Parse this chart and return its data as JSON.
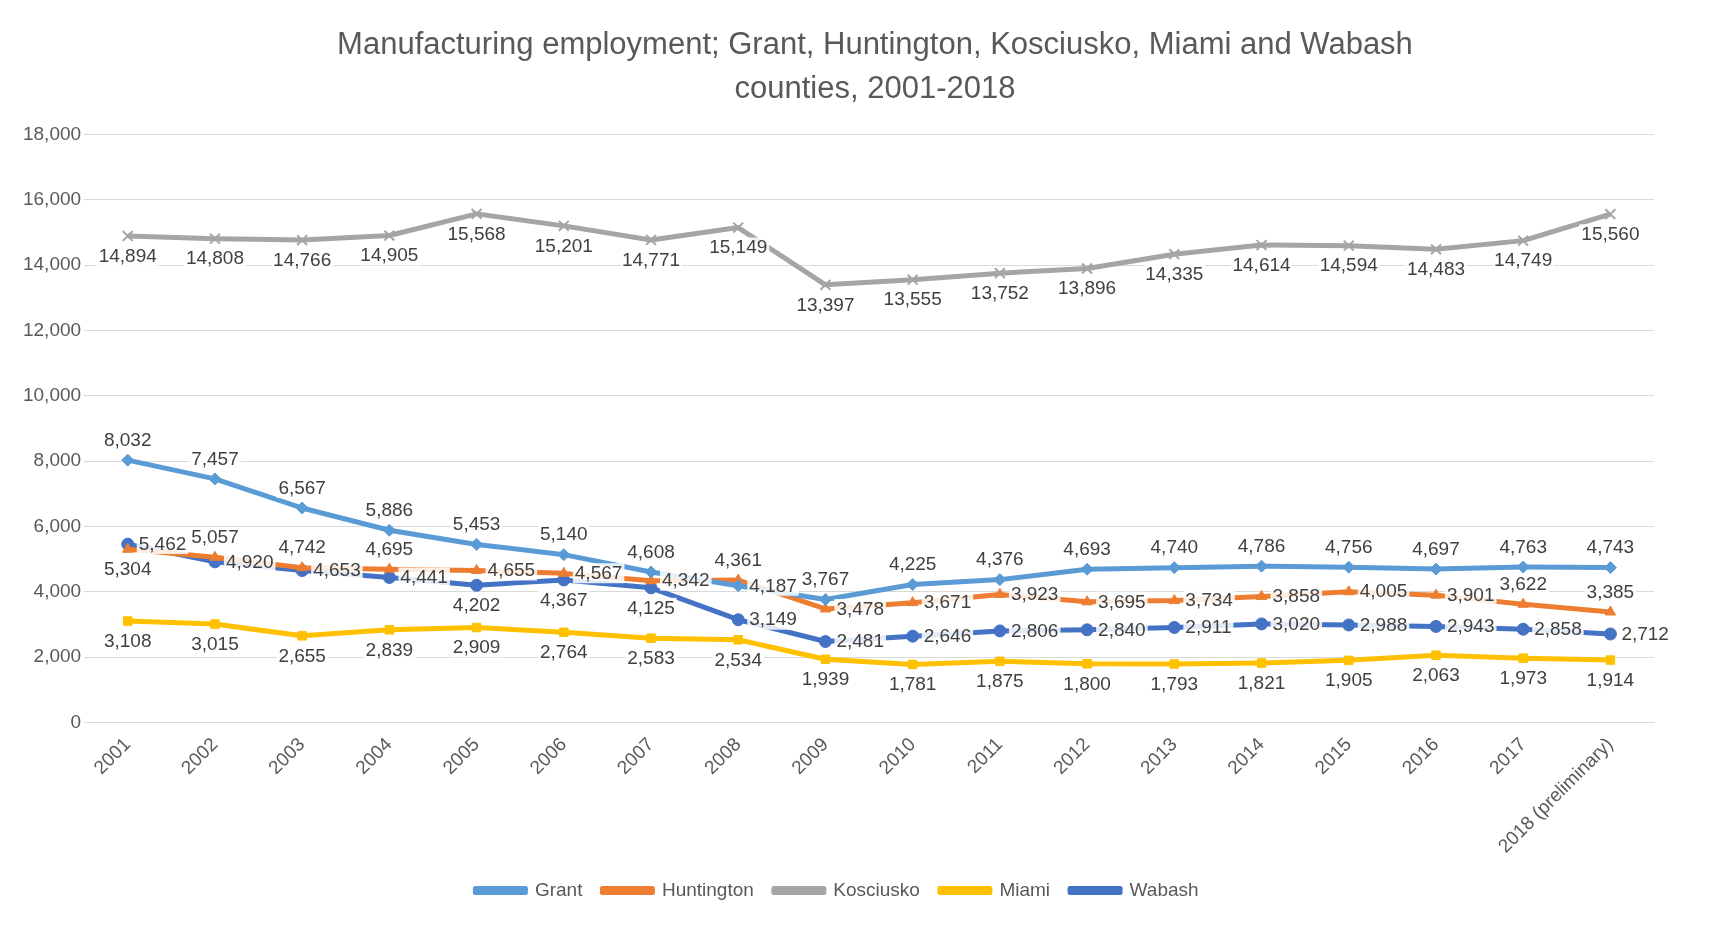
{
  "chart_data": {
    "type": "line",
    "title": "Manufacturing employment; Grant, Huntington, Kosciusko, Miami and Wabash counties, 2001-2018",
    "categories": [
      "2001",
      "2002",
      "2003",
      "2004",
      "2005",
      "2006",
      "2007",
      "2008",
      "2009",
      "2010",
      "2011",
      "2012",
      "2013",
      "2014",
      "2015",
      "2016",
      "2017",
      "2018 (preliminary)"
    ],
    "ylim": [
      0,
      18000
    ],
    "yticks": [
      {
        "value": 0,
        "label": "0"
      },
      {
        "value": 2000,
        "label": "2,000"
      },
      {
        "value": 4000,
        "label": "4,000"
      },
      {
        "value": 6000,
        "label": "6,000"
      },
      {
        "value": 8000,
        "label": "8,000"
      },
      {
        "value": 10000,
        "label": "10,000"
      },
      {
        "value": 12000,
        "label": "12,000"
      },
      {
        "value": 14000,
        "label": "14,000"
      },
      {
        "value": 16000,
        "label": "16,000"
      },
      {
        "value": 18000,
        "label": "18,000"
      }
    ],
    "grid": "y",
    "legend": "bottom",
    "series": [
      {
        "name": "Grant",
        "color": "#5b9bd5",
        "marker": "diamond",
        "values": [
          8032,
          7457,
          6567,
          5886,
          5453,
          5140,
          4608,
          4187,
          3767,
          4225,
          4376,
          4693,
          4740,
          4786,
          4756,
          4697,
          4763,
          4743
        ],
        "value_labels": [
          "8,032",
          "7,457",
          "6,567",
          "5,886",
          "5,453",
          "5,140",
          "4,608",
          "4,187",
          "3,767",
          "4,225",
          "4,376",
          "4,693",
          "4,740",
          "4,786",
          "4,756",
          "4,697",
          "4,763",
          "4,743"
        ]
      },
      {
        "name": "Huntington",
        "color": "#ed7d31",
        "marker": "triangle",
        "values": [
          5304,
          5057,
          4742,
          4695,
          4655,
          4567,
          4342,
          4361,
          3478,
          3671,
          3923,
          3695,
          3734,
          3858,
          4005,
          3901,
          3622,
          3385
        ],
        "value_labels": [
          "5,304",
          "5,057",
          "4,742",
          "4,695",
          "4,655",
          "4,567",
          "4,342",
          "4,361",
          "3,478",
          "3,671",
          "3,923",
          "3,695",
          "3,734",
          "3,858",
          "4,005",
          "3,901",
          "3,622",
          "3,385"
        ]
      },
      {
        "name": "Kosciusko",
        "color": "#a5a5a5",
        "marker": "cross",
        "values": [
          14894,
          14808,
          14766,
          14905,
          15568,
          15201,
          14771,
          15149,
          13397,
          13555,
          13752,
          13896,
          14335,
          14614,
          14594,
          14483,
          14749,
          15560
        ],
        "value_labels": [
          "14,894",
          "14,808",
          "14,766",
          "14,905",
          "15,568",
          "15,201",
          "14,771",
          "15,149",
          "13,397",
          "13,555",
          "13,752",
          "13,896",
          "14,335",
          "14,614",
          "14,594",
          "14,483",
          "14,749",
          "15,560"
        ]
      },
      {
        "name": "Miami",
        "color": "#ffc000",
        "marker": "square",
        "values": [
          3108,
          3015,
          2655,
          2839,
          2909,
          2764,
          2583,
          2534,
          1939,
          1781,
          1875,
          1800,
          1793,
          1821,
          1905,
          2063,
          1973,
          1914
        ],
        "value_labels": [
          "3,108",
          "3,015",
          "2,655",
          "2,839",
          "2,909",
          "2,764",
          "2,583",
          "2,534",
          "1,939",
          "1,781",
          "1,875",
          "1,800",
          "1,793",
          "1,821",
          "1,905",
          "2,063",
          "1,973",
          "1,914"
        ]
      },
      {
        "name": "Wabash",
        "color": "#4472c4",
        "marker": "circle",
        "values": [
          5462,
          4920,
          4653,
          4441,
          4202,
          4367,
          4125,
          3149,
          2481,
          2646,
          2806,
          2840,
          2911,
          3020,
          2988,
          2943,
          2858,
          2712
        ],
        "value_labels": [
          "5,462",
          "4,920",
          "4,653",
          "4,441",
          "4,202",
          "4,367",
          "4,125",
          "3,149",
          "2,481",
          "2,646",
          "2,806",
          "2,840",
          "2,911",
          "3,020",
          "2,988",
          "2,943",
          "2,858",
          "2,712"
        ]
      }
    ]
  }
}
